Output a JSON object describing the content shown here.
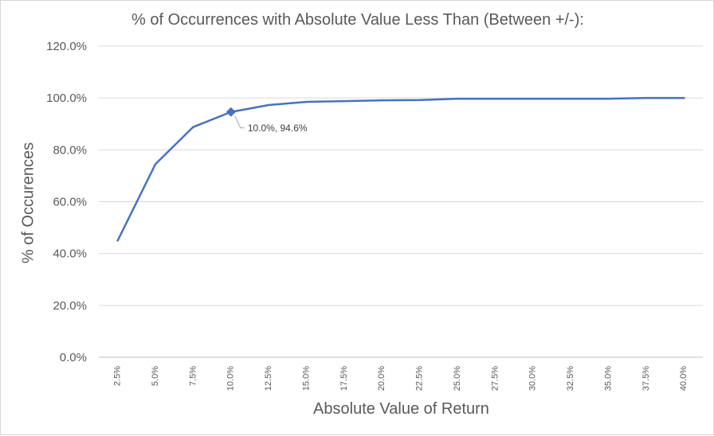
{
  "chart_data": {
    "type": "line",
    "title": "% of Occurrences with Absolute Value Less Than (Between +/-):",
    "xlabel": "Absolute Value of Return",
    "ylabel": "% of Occurences",
    "categories": [
      "2.5%",
      "5.0%",
      "7.5%",
      "10.0%",
      "12.5%",
      "15.0%",
      "17.5%",
      "20.0%",
      "22.5%",
      "25.0%",
      "27.5%",
      "30.0%",
      "32.5%",
      "35.0%",
      "37.5%",
      "40.0%"
    ],
    "series": [
      {
        "values": [
          45.0,
          74.5,
          88.8,
          94.6,
          97.3,
          98.5,
          98.8,
          99.1,
          99.2,
          99.7,
          99.7,
          99.7,
          99.7,
          99.7,
          100.0,
          100.0
        ]
      }
    ],
    "ylim": [
      0,
      120
    ],
    "yticks": [
      "0.0%",
      "20.0%",
      "40.0%",
      "60.0%",
      "80.0%",
      "100.0%",
      "120.0%"
    ],
    "grid": true,
    "color": "#4472c4",
    "annotation": {
      "label": "10.0%, 94.6%"
    }
  }
}
